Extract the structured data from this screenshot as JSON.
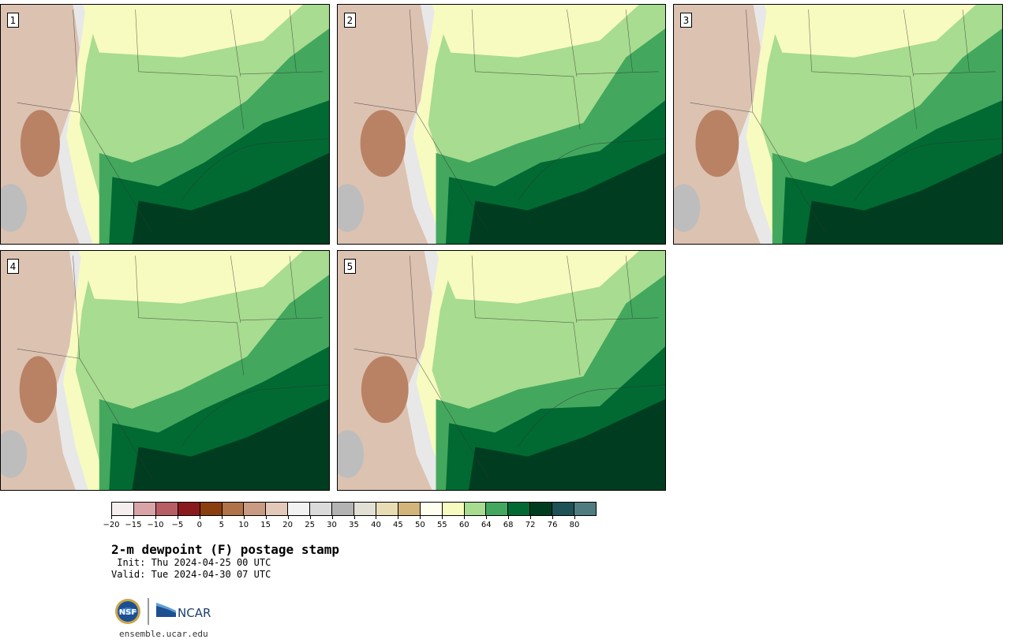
{
  "title": "2-m dewpoint (F) postage stamp",
  "init_label": " Init: Thu 2024-04-25 00 UTC",
  "valid_label": "Valid: Tue 2024-04-30 07 UTC",
  "website": "ensemble.ucar.edu",
  "logos": {
    "nsf": "NSF",
    "ncar": "NCAR"
  },
  "panels": [
    {
      "number": "1",
      "dry_level": 1.0,
      "moist_level": 1.05
    },
    {
      "number": "2",
      "dry_level": 1.15,
      "moist_level": 0.85
    },
    {
      "number": "3",
      "dry_level": 1.1,
      "moist_level": 1.0
    },
    {
      "number": "4",
      "dry_level": 0.95,
      "moist_level": 0.95
    },
    {
      "number": "5",
      "dry_level": 1.2,
      "moist_level": 0.8
    }
  ],
  "colorbar": {
    "colors": [
      "#f5eeee",
      "#d9a4a8",
      "#b75e64",
      "#8b1a1e",
      "#8b3e0f",
      "#b07248",
      "#c89b82",
      "#e3c9b9",
      "#f2f2f2",
      "#dadada",
      "#b3b3b3",
      "#e2e0d4",
      "#e8dcb4",
      "#d2b57a",
      "#fffff0",
      "#f8fbc0",
      "#a8dc90",
      "#43a85e",
      "#006a32",
      "#003d20",
      "#1e5256",
      "#4f7d7f"
    ],
    "ticks": [
      "−20",
      "−15",
      "−10",
      "−5",
      "0",
      "5",
      "10",
      "15",
      "20",
      "25",
      "30",
      "35",
      "40",
      "45",
      "50",
      "55",
      "60",
      "64",
      "68",
      "72",
      "76",
      "80"
    ]
  }
}
